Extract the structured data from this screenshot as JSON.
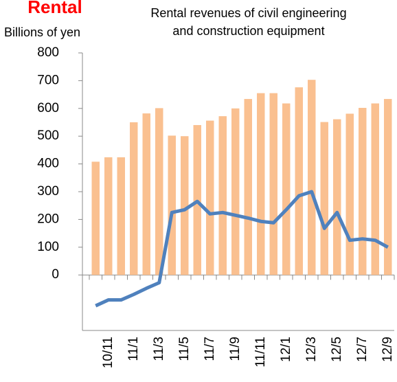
{
  "chart_data": {
    "type": "bar",
    "title": "Rental",
    "subtitle": [
      "Rental revenues of civil engineering",
      "and construction equipment"
    ],
    "y_label": "Billions of yen",
    "categories": [
      null,
      "10/11",
      null,
      "11/1",
      null,
      "11/3",
      null,
      "11/5",
      null,
      "11/7",
      null,
      "11/9",
      null,
      "11/11",
      null,
      "12/1",
      null,
      "12/3",
      null,
      "12/5",
      null,
      "12/7",
      null,
      "12/9"
    ],
    "series": [
      {
        "type": "bar",
        "color": "#fac090",
        "values": [
          408,
          424,
          424,
          550,
          582,
          601,
          502,
          500,
          540,
          556,
          572,
          600,
          634,
          655,
          655,
          618,
          676,
          703,
          551,
          561,
          581,
          602,
          618,
          634
        ]
      },
      {
        "type": "line",
        "color": "#4f81bd",
        "values": [
          -111,
          -90,
          -90,
          -70,
          -48,
          -28,
          225,
          235,
          265,
          220,
          225,
          215,
          205,
          193,
          188,
          235,
          285,
          300,
          168,
          225,
          125,
          130,
          125,
          100
        ]
      }
    ],
    "ylim": [
      -200,
      800
    ],
    "yticks": [
      0,
      100,
      200,
      300,
      400,
      500,
      600,
      700,
      800
    ]
  }
}
